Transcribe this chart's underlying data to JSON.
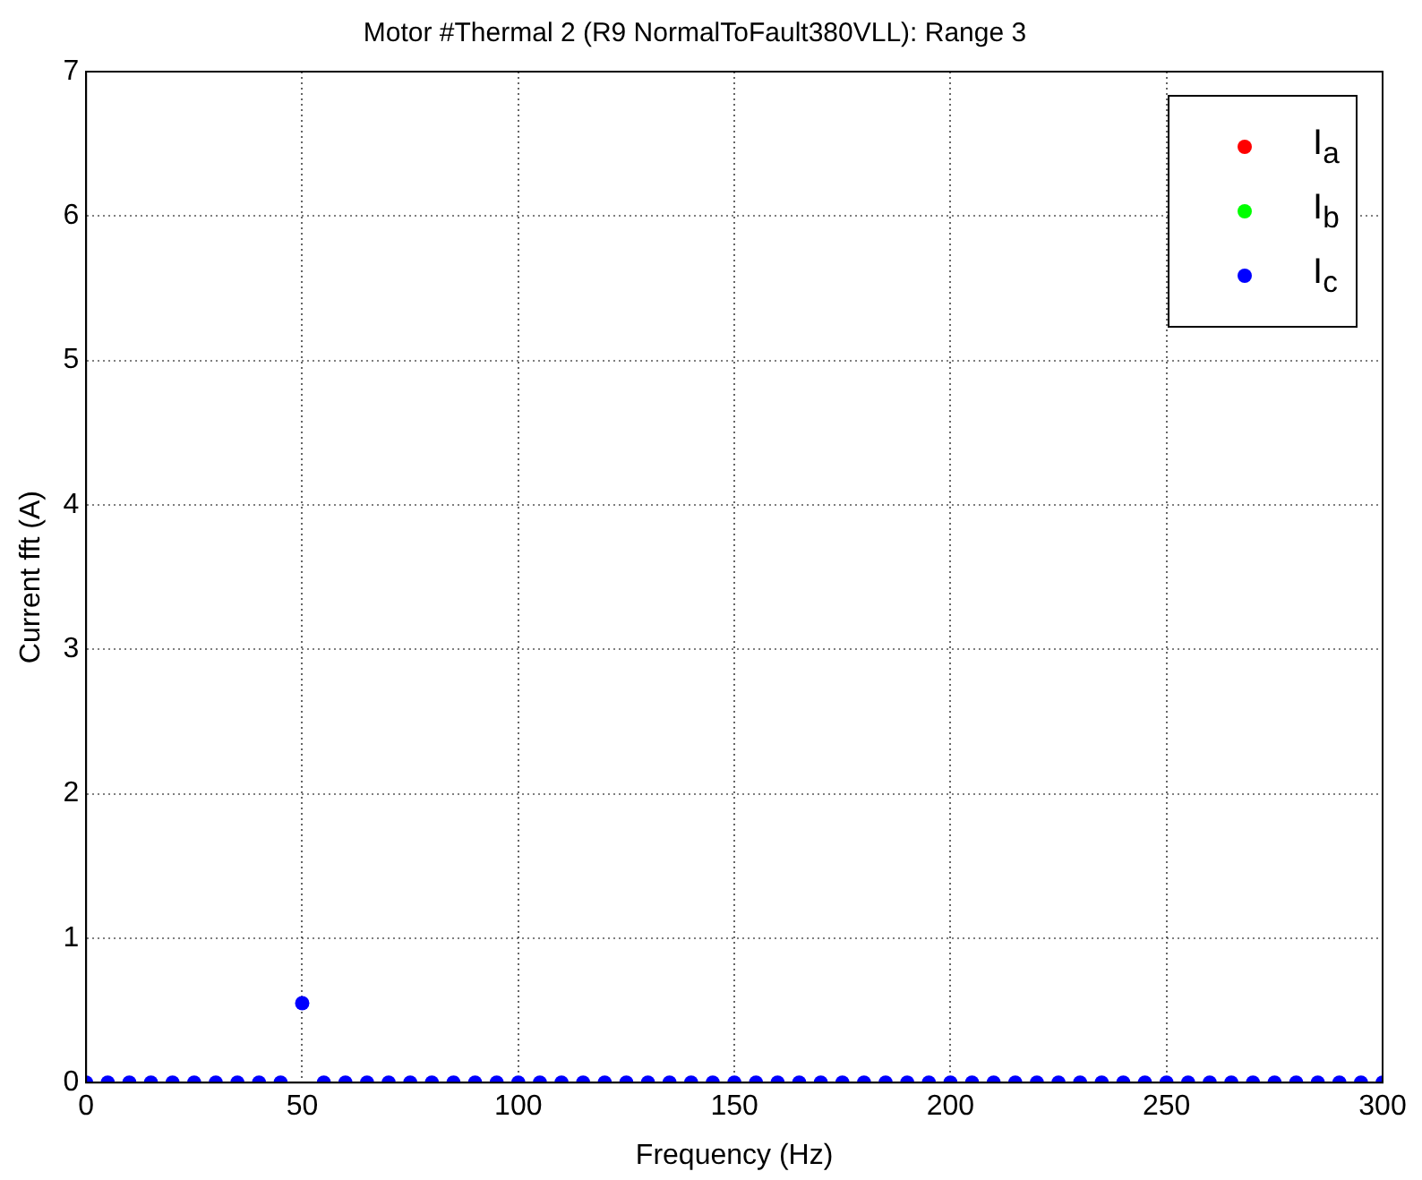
{
  "chart_data": {
    "type": "scatter",
    "title": "Motor #Thermal 2 (R9 NormalToFault380VLL): Range 3",
    "xlabel": "Frequency (Hz)",
    "ylabel": "Current fft (A)",
    "x": [
      0,
      5,
      10,
      15,
      20,
      25,
      30,
      35,
      40,
      45,
      50,
      55,
      60,
      65,
      70,
      75,
      80,
      85,
      90,
      95,
      100,
      105,
      110,
      115,
      120,
      125,
      130,
      135,
      140,
      145,
      150,
      155,
      160,
      165,
      170,
      175,
      180,
      185,
      190,
      195,
      200,
      205,
      210,
      215,
      220,
      225,
      230,
      235,
      240,
      245,
      250,
      255,
      260,
      265,
      270,
      275,
      280,
      285,
      290,
      295,
      300
    ],
    "series": [
      {
        "name": "I$_{a}$",
        "color": "#ff0000",
        "values": [
          null,
          null,
          null,
          null,
          null,
          null,
          null,
          null,
          null,
          null,
          null,
          null,
          null,
          null,
          null,
          null,
          null,
          null,
          null,
          null,
          null,
          null,
          null,
          null,
          null,
          null,
          null,
          null,
          null,
          null,
          null,
          null,
          null,
          null,
          null,
          null,
          null,
          null,
          null,
          null,
          null,
          null,
          null,
          null,
          null,
          null,
          null,
          null,
          null,
          null,
          null,
          null,
          null,
          null,
          null,
          null,
          null,
          null,
          null,
          null,
          null
        ]
      },
      {
        "name": "I$_{b}$",
        "color": "#00ff00",
        "values": [
          null,
          null,
          null,
          null,
          null,
          null,
          null,
          null,
          null,
          null,
          null,
          null,
          null,
          null,
          null,
          null,
          null,
          null,
          null,
          null,
          null,
          null,
          null,
          null,
          null,
          null,
          null,
          null,
          null,
          null,
          null,
          null,
          null,
          null,
          null,
          null,
          null,
          null,
          null,
          null,
          null,
          null,
          null,
          null,
          null,
          null,
          null,
          null,
          null,
          null,
          null,
          null,
          null,
          null,
          null,
          null,
          null,
          null,
          null,
          null,
          null
        ]
      },
      {
        "name": "I$_{c}$",
        "color": "#0000ff",
        "values": [
          0,
          0,
          0,
          0,
          0,
          0,
          0,
          0,
          0,
          0,
          0.55,
          0,
          0,
          0,
          0,
          0,
          0,
          0,
          0,
          0,
          0,
          0,
          0,
          0,
          0,
          0,
          0,
          0,
          0,
          0,
          0,
          0,
          0,
          0,
          0,
          0,
          0,
          0,
          0,
          0,
          0,
          0,
          0,
          0,
          0,
          0,
          0,
          0,
          0,
          0,
          0,
          0,
          0,
          0,
          0,
          0,
          0,
          0,
          0,
          0,
          0
        ]
      }
    ],
    "xlim": [
      0,
      300
    ],
    "xticks": [
      0,
      50,
      100,
      150,
      200,
      250,
      300
    ],
    "ylim": [
      0,
      7
    ],
    "yticks": [
      0,
      1,
      2,
      3,
      4,
      5,
      6,
      7
    ],
    "grid": true,
    "legend": "top right",
    "marker": "circle"
  }
}
